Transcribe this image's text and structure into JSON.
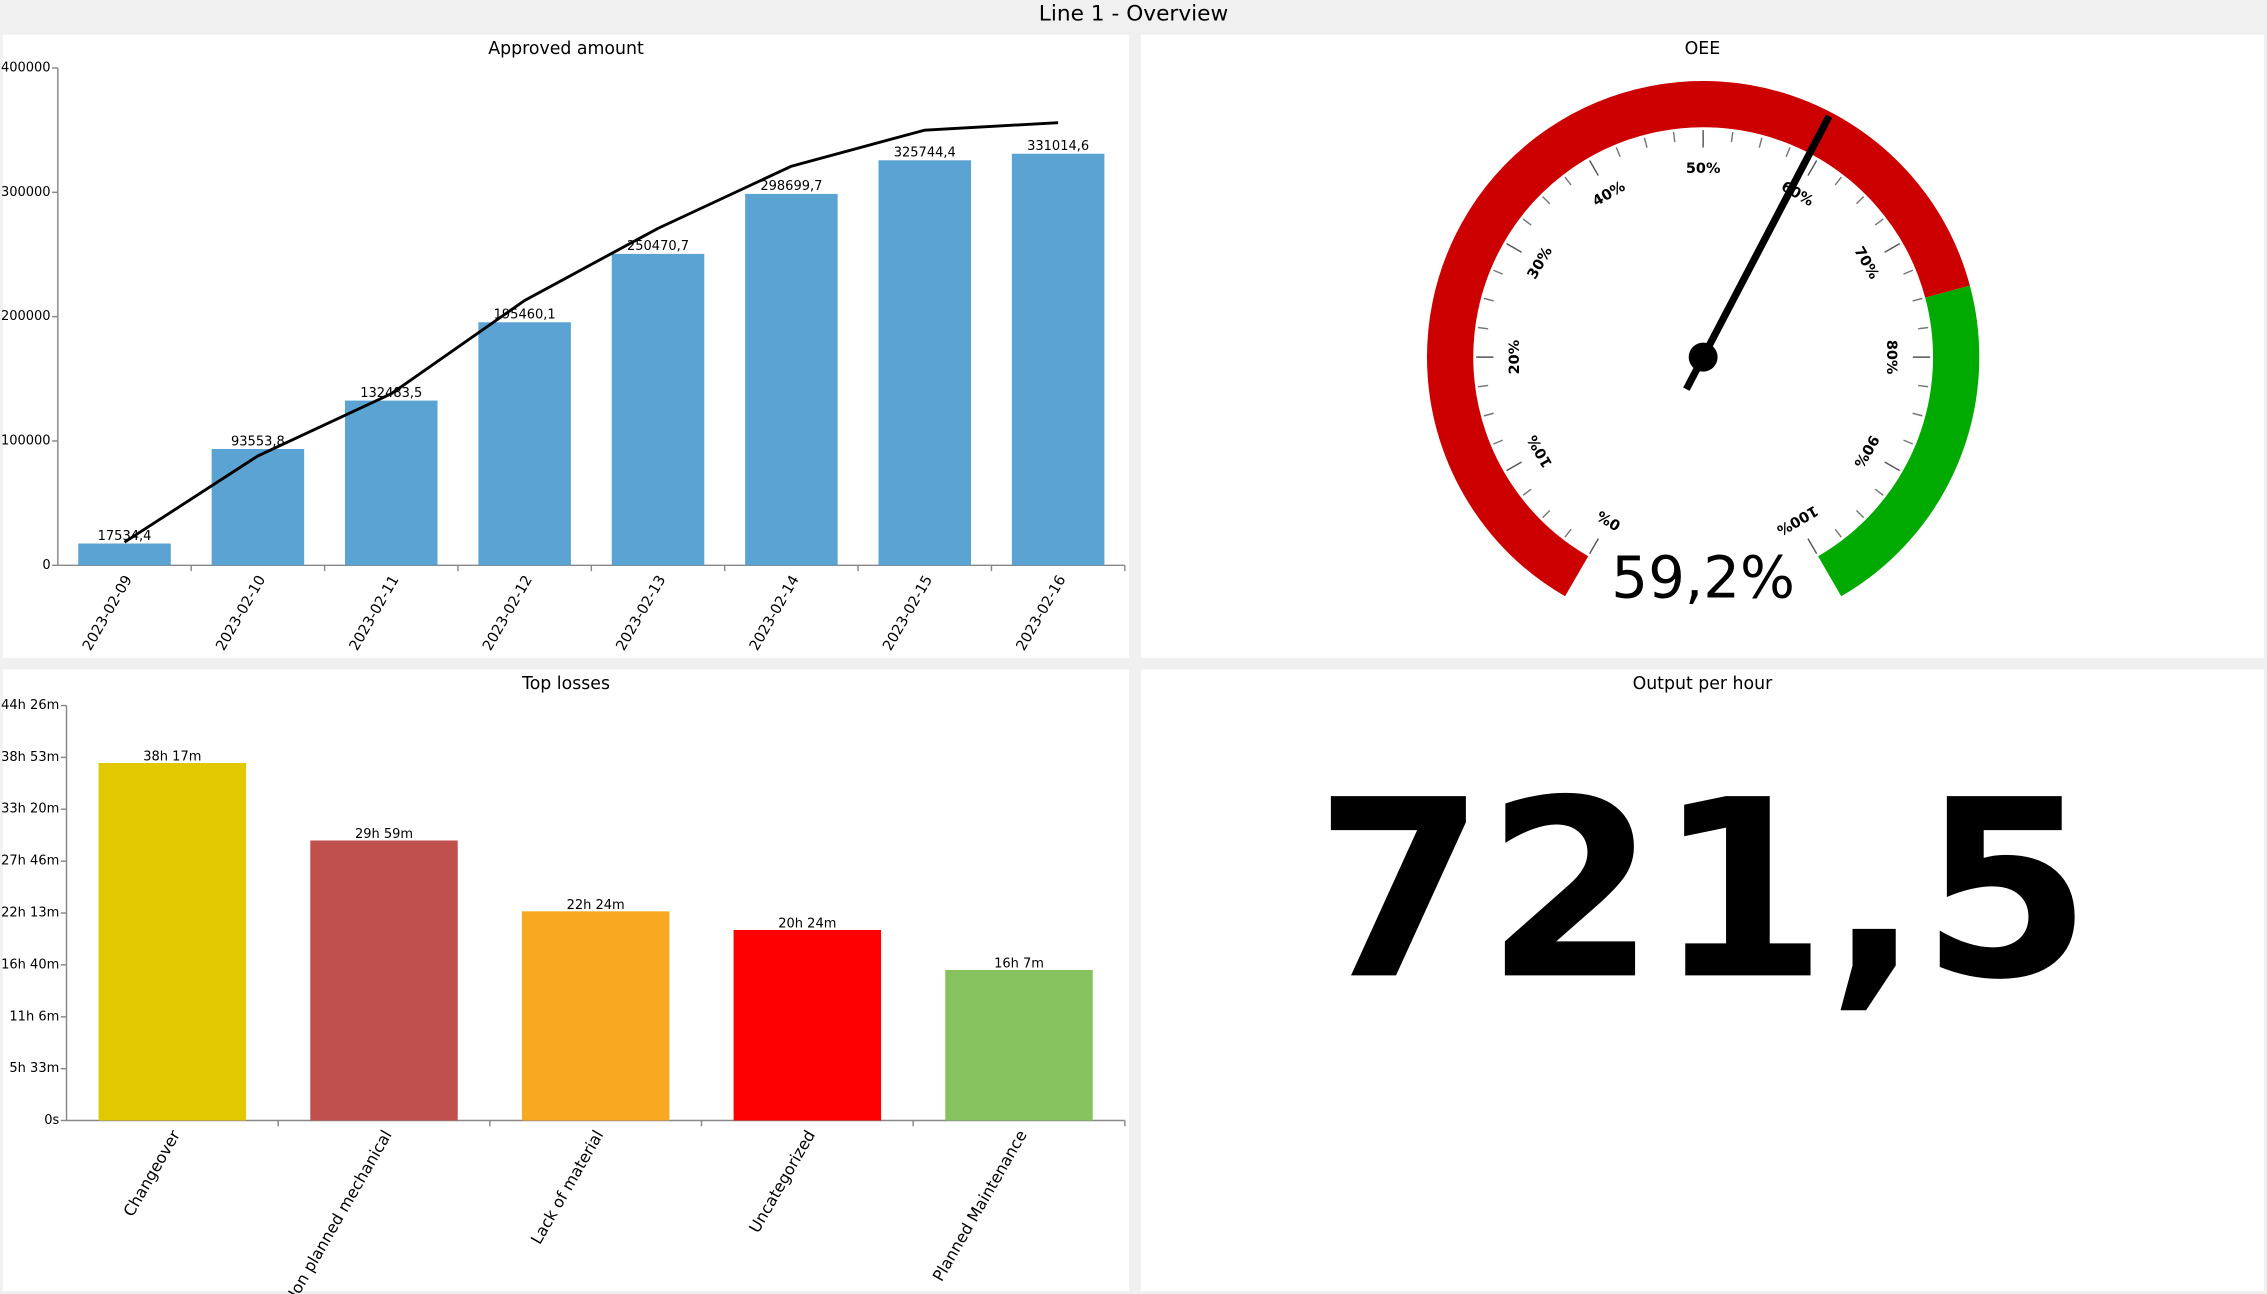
{
  "title": "Line 1 - Overview",
  "chart_data": [
    {
      "type": "combo",
      "title": "Approved amount",
      "categories": [
        "2023-02-09",
        "2023-02-10",
        "2023-02-11",
        "2023-02-12",
        "2023-02-13",
        "2023-02-14",
        "2023-02-15",
        "2023-02-16"
      ],
      "series": [
        {
          "type": "bar",
          "color": "#5ba3d3",
          "values": [
            17534.4,
            93553.8,
            132483.5,
            195460.1,
            250470.7,
            298699.7,
            325744.4,
            331014.6
          ],
          "value_labels": [
            "17534,4",
            "93553,8",
            "132483,5",
            "195460,1",
            "250470,7",
            "298699,7",
            "325744,4",
            "331014,6"
          ]
        },
        {
          "type": "line",
          "color": "#000000",
          "values": [
            18600,
            88000,
            138000,
            213000,
            271000,
            321000,
            350000,
            356000
          ]
        }
      ],
      "ylim": [
        0,
        400000
      ],
      "yticks": [
        0,
        100000,
        200000,
        300000,
        400000
      ]
    },
    {
      "type": "gauge",
      "title": "OEE",
      "value": 59.2,
      "value_label": "59,2%",
      "range": [
        0,
        100
      ],
      "ticks": [
        {
          "value": 0,
          "label": "0%"
        },
        {
          "value": 10,
          "label": "10%"
        },
        {
          "value": 20,
          "label": "20%"
        },
        {
          "value": 30,
          "label": "30%"
        },
        {
          "value": 40,
          "label": "40%"
        },
        {
          "value": 50,
          "label": "50%"
        },
        {
          "value": 60,
          "label": "60%"
        },
        {
          "value": 70,
          "label": "70%"
        },
        {
          "value": 80,
          "label": "80%"
        },
        {
          "value": 90,
          "label": "90%"
        },
        {
          "value": 100,
          "label": "100%"
        }
      ],
      "bands": [
        {
          "from": 0,
          "to": 75,
          "color": "#cc0000"
        },
        {
          "from": 75,
          "to": 100,
          "color": "#00aa00"
        }
      ]
    },
    {
      "type": "bar",
      "title": "Top losses",
      "categories": [
        "Changeover",
        "Non planned mechanical",
        "Lack of material",
        "Uncategorized",
        "Planned Maintenance"
      ],
      "values": [
        2297,
        1799,
        1344,
        1224,
        967
      ],
      "value_labels": [
        "38h 17m",
        "29h 59m",
        "22h 24m",
        "20h 24m",
        "16h 7m"
      ],
      "colors": [
        "#e1c800",
        "#c0504d",
        "#f9a822",
        "#ff0000",
        "#86c35e"
      ],
      "ylim": [
        0,
        2666
      ],
      "yticks": [
        {
          "value": 0,
          "label": "0s"
        },
        {
          "value": 333,
          "label": "5h 33m"
        },
        {
          "value": 666,
          "label": "11h 6m"
        },
        {
          "value": 1000,
          "label": "16h 40m"
        },
        {
          "value": 1333,
          "label": "22h 13m"
        },
        {
          "value": 1666,
          "label": "27h 46m"
        },
        {
          "value": 2000,
          "label": "33h 20m"
        },
        {
          "value": 2333,
          "label": "38h 53m"
        },
        {
          "value": 2666,
          "label": "44h 26m"
        }
      ]
    },
    {
      "type": "kpi",
      "title": "Output per hour",
      "value": 721.5,
      "value_label": "721,5"
    }
  ]
}
